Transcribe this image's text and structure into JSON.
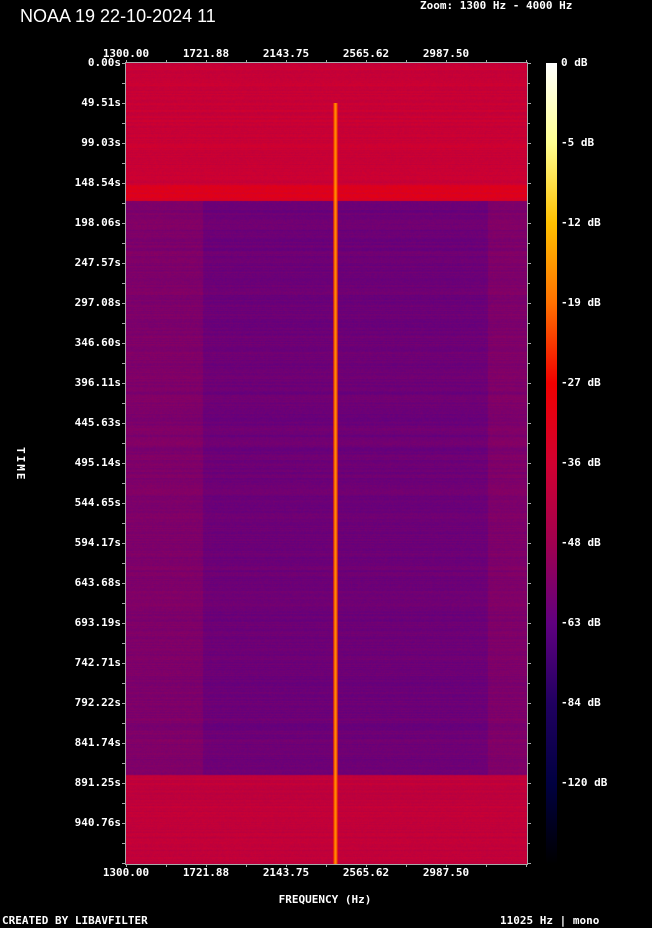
{
  "title": "NOAA 19 22-10-2024 11",
  "zoom_label": "Zoom: 1300 Hz - 4000 Hz",
  "footer": {
    "created": "CREATED BY LIBAVFILTER",
    "rate": "11025 Hz | mono"
  },
  "chart_data": {
    "type": "heatmap",
    "title": "",
    "xlabel": "FREQUENCY (Hz)",
    "ylabel": "TIME",
    "x_ticks": [
      "1300.00",
      "1721.88",
      "2143.75",
      "2565.62",
      "2987.50"
    ],
    "y_ticks": [
      "0.00s",
      "49.51s",
      "99.03s",
      "148.54s",
      "198.06s",
      "247.57s",
      "297.08s",
      "346.60s",
      "396.11s",
      "445.63s",
      "495.14s",
      "544.65s",
      "594.17s",
      "643.68s",
      "693.19s",
      "742.71s",
      "792.22s",
      "841.74s",
      "891.25s",
      "940.76s"
    ],
    "xlim": [
      1300,
      3409
    ],
    "ylim": [
      0,
      991
    ],
    "colorbar": {
      "labels": [
        "0 dB",
        "-5 dB",
        "-12 dB",
        "-19 dB",
        "-27 dB",
        "-36 dB",
        "-48 dB",
        "-63 dB",
        "-84 dB",
        "-120 dB"
      ],
      "stops": [
        {
          "db": 0,
          "color": "#ffffff"
        },
        {
          "db": -5,
          "color": "#ffff90"
        },
        {
          "db": -12,
          "color": "#ffc000"
        },
        {
          "db": -19,
          "color": "#ff7000"
        },
        {
          "db": -27,
          "color": "#f00000"
        },
        {
          "db": -36,
          "color": "#d00030"
        },
        {
          "db": -48,
          "color": "#a00050"
        },
        {
          "db": -63,
          "color": "#600080"
        },
        {
          "db": -84,
          "color": "#200060"
        },
        {
          "db": -120,
          "color": "#000040"
        },
        {
          "db": -150,
          "color": "#000000"
        }
      ]
    },
    "background_db": [
      {
        "t_start": 0,
        "t_end": 150,
        "db": -38
      },
      {
        "t_start": 150,
        "t_end": 170,
        "db": -33
      },
      {
        "t_start": 170,
        "t_end": 880,
        "db": -56
      },
      {
        "t_start": 880,
        "t_end": 991,
        "db": -40
      }
    ],
    "carrier": {
      "freq_hz": 2400,
      "t_start": 50,
      "t_end": 991,
      "db": -17
    }
  }
}
